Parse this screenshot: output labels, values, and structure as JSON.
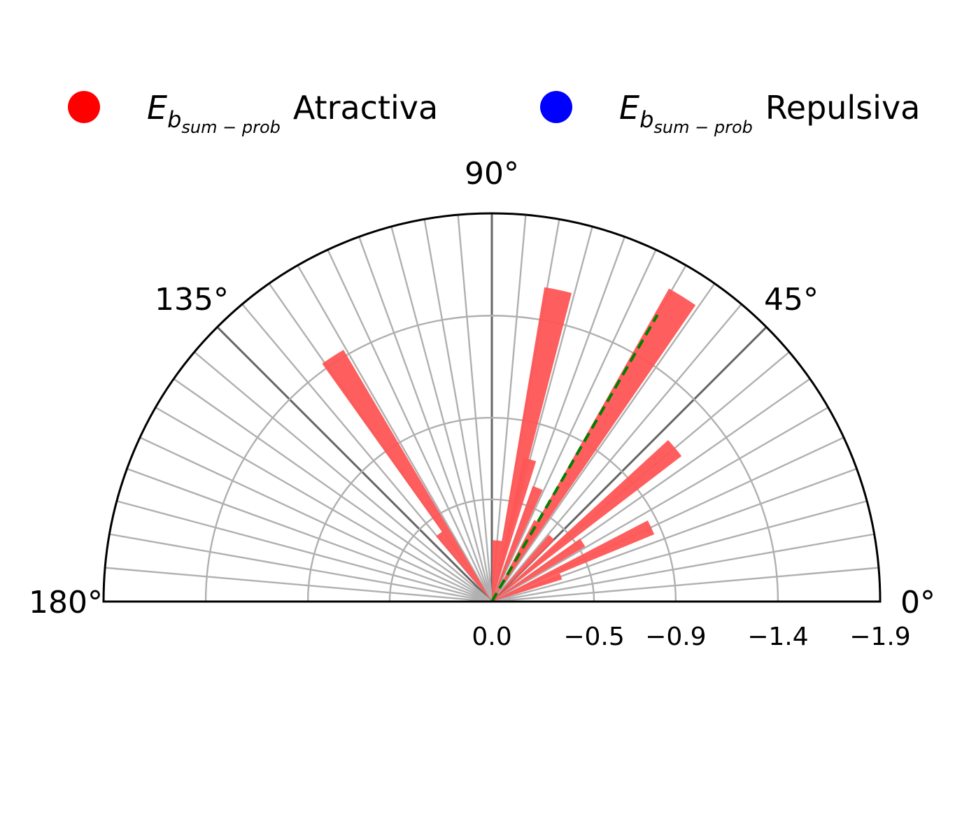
{
  "chart_data": {
    "type": "polar-bar",
    "title": "",
    "theta_range_deg": [
      0,
      180
    ],
    "angle_tick_labels": [
      {
        "deg": 0,
        "label": "0°"
      },
      {
        "deg": 45,
        "label": "45°"
      },
      {
        "deg": 90,
        "label": "90°"
      },
      {
        "deg": 135,
        "label": "135°"
      },
      {
        "deg": 180,
        "label": "180°"
      }
    ],
    "angle_minor_step_deg": 5,
    "radial_ticks": [
      {
        "value": 0.0,
        "label": "0.0"
      },
      {
        "value": -0.5,
        "label": "−0.5"
      },
      {
        "value": -0.9,
        "label": "−0.9"
      },
      {
        "value": -1.4,
        "label": "−1.4"
      },
      {
        "value": -1.9,
        "label": "−1.9"
      }
    ],
    "radial_gridlines": [
      -0.5,
      -0.9,
      -1.4
    ],
    "radial_limit": -1.9,
    "inner_arc_value": -0.5,
    "legend": {
      "placement": "top",
      "items": [
        {
          "symbol": "E",
          "subscript": "sum − prob",
          "subscript_base": "b",
          "label": "Atractiva",
          "color": "#ff0000"
        },
        {
          "symbol": "E",
          "subscript": "sum − prob",
          "subscript_base": "b",
          "label": "Repulsiva",
          "color": "#0000ff"
        }
      ]
    },
    "series": [
      {
        "name": "Atractiva",
        "color": "#ff5555",
        "bars": [
          {
            "theta_deg": 20,
            "value": -0.36
          },
          {
            "theta_deg": 25,
            "value": -0.86
          },
          {
            "theta_deg": 33,
            "value": -0.53
          },
          {
            "theta_deg": 40,
            "value": -1.17
          },
          {
            "theta_deg": 47,
            "value": -0.43
          },
          {
            "theta_deg": 58,
            "value": -1.76
          },
          {
            "theta_deg": 60,
            "value": -0.45
          },
          {
            "theta_deg": 68,
            "value": -0.6
          },
          {
            "theta_deg": 75,
            "value": -0.72
          },
          {
            "theta_deg": 78,
            "value": -1.56
          },
          {
            "theta_deg": 83,
            "value": -0.3
          },
          {
            "theta_deg": 87,
            "value": -0.3
          },
          {
            "theta_deg": 123,
            "value": -1.43
          },
          {
            "theta_deg": 128,
            "value": -0.42
          }
        ]
      },
      {
        "name": "Repulsiva",
        "color": "#0000ff",
        "bars": []
      }
    ],
    "reference_line": {
      "theta_deg": 60,
      "value": -1.62,
      "color": "#008000",
      "style": "dashed"
    }
  }
}
